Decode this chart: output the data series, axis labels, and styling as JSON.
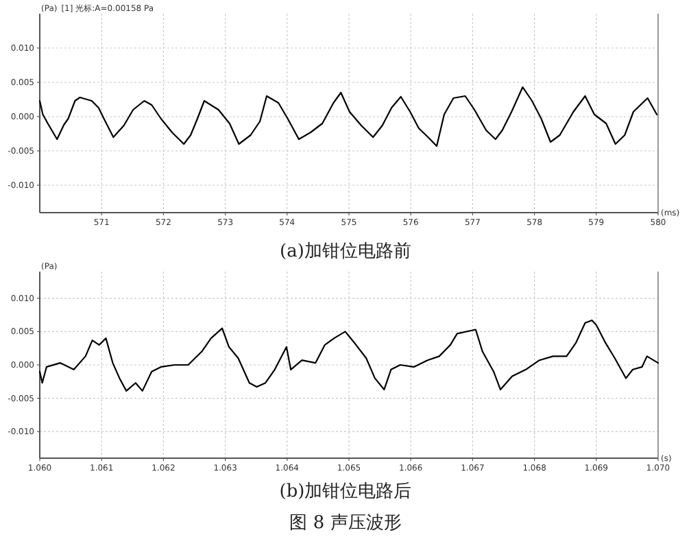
{
  "chart_data": [
    {
      "type": "line",
      "title": "(a)加钳位电路前",
      "xlabel": "(ms)",
      "ylabel": "(Pa)",
      "annotations": [
        "[1] 光标:A=0.00158 Pa"
      ],
      "grid": true,
      "xlim": [
        570,
        580
      ],
      "xticks": [
        571,
        572,
        573,
        574,
        575,
        576,
        577,
        578,
        579,
        580
      ],
      "ylim": [
        -0.014,
        0.015
      ],
      "yticks": [
        {
          "value": 0.01,
          "label": "0.010"
        },
        {
          "value": 0.005,
          "label": "0.005"
        },
        {
          "value": 0,
          "label": "0.000"
        },
        {
          "value": -0.005,
          "label": "-0.005"
        },
        {
          "value": -0.01,
          "label": "-0.010"
        }
      ],
      "series": [
        {
          "color": "#000000",
          "x": [
            570.0,
            570.05,
            570.13,
            570.28,
            570.39,
            570.46,
            570.57,
            570.65,
            570.84,
            570.95,
            571.06,
            571.19,
            571.36,
            571.51,
            571.69,
            571.81,
            571.96,
            572.14,
            572.33,
            572.44,
            572.55,
            572.66,
            572.89,
            573.07,
            573.22,
            573.41,
            573.56,
            573.67,
            573.86,
            574.01,
            574.19,
            574.38,
            574.57,
            574.75,
            574.87,
            575.01,
            575.2,
            575.39,
            575.54,
            575.69,
            575.84,
            575.99,
            576.13,
            576.28,
            576.42,
            576.54,
            576.69,
            576.88,
            577.03,
            577.22,
            577.37,
            577.48,
            577.63,
            577.81,
            577.96,
            578.11,
            578.26,
            578.41,
            578.63,
            578.82,
            578.97,
            579.16,
            579.31,
            579.46,
            579.6,
            579.83,
            579.98
          ],
          "values": [
            0.0023,
            0.0003,
            -0.001,
            -0.0033,
            -0.0012,
            -0.0003,
            0.0023,
            0.0028,
            0.0023,
            0.0013,
            -0.0007,
            -0.003,
            -0.0013,
            0.001,
            0.0023,
            0.0017,
            -0.0003,
            -0.0023,
            -0.004,
            -0.0027,
            -0.0003,
            0.0023,
            0.001,
            -0.001,
            -0.004,
            -0.0027,
            -0.0007,
            0.003,
            0.002,
            -0.0003,
            -0.0033,
            -0.0023,
            -0.001,
            0.002,
            0.0035,
            0.0007,
            -0.0013,
            -0.003,
            -0.0013,
            0.0013,
            0.0029,
            0.0007,
            -0.0017,
            -0.003,
            -0.0043,
            0.0003,
            0.0027,
            0.003,
            0.001,
            -0.002,
            -0.0033,
            -0.002,
            0.0007,
            0.0043,
            0.0023,
            -0.0003,
            -0.0037,
            -0.0027,
            0.0007,
            0.003,
            0.0003,
            -0.001,
            -0.004,
            -0.0027,
            0.0007,
            0.0027,
            0.0003
          ]
        }
      ]
    },
    {
      "type": "line",
      "title": "(b)加钳位电路后",
      "xlabel": "(s)",
      "ylabel": "(Pa)",
      "annotations": [
        "图 8  声压波形"
      ],
      "grid": true,
      "xlim": [
        1.06,
        1.07
      ],
      "xticks": [
        {
          "value": 1.06,
          "label": "1.060"
        },
        {
          "value": 1.061,
          "label": "1.061"
        },
        {
          "value": 1.062,
          "label": "1.062"
        },
        {
          "value": 1.063,
          "label": "1.063"
        },
        {
          "value": 1.064,
          "label": "1.064"
        },
        {
          "value": 1.065,
          "label": "1.065"
        },
        {
          "value": 1.066,
          "label": "1.066"
        },
        {
          "value": 1.067,
          "label": "1.067"
        },
        {
          "value": 1.068,
          "label": "1.068"
        },
        {
          "value": 1.069,
          "label": "1.069"
        },
        {
          "value": 1.07,
          "label": "1.070"
        }
      ],
      "ylim": [
        -0.014,
        0.014
      ],
      "yticks": [
        {
          "value": 0.01,
          "label": "0.010"
        },
        {
          "value": 0.005,
          "label": "0.005"
        },
        {
          "value": 0,
          "label": "0.000"
        },
        {
          "value": -0.005,
          "label": "-0.005"
        },
        {
          "value": -0.01,
          "label": "-0.010"
        }
      ],
      "series": [
        {
          "color": "#000000",
          "x": [
            1.06,
            1.06004,
            1.06011,
            1.06033,
            1.06055,
            1.06074,
            1.06085,
            1.06096,
            1.06107,
            1.06118,
            1.06129,
            1.0614,
            1.06155,
            1.06166,
            1.06181,
            1.06196,
            1.06218,
            1.0624,
            1.06262,
            1.06277,
            1.06295,
            1.06306,
            1.06321,
            1.06339,
            1.06351,
            1.06365,
            1.0638,
            1.06399,
            1.06406,
            1.06424,
            1.06446,
            1.06461,
            1.06476,
            1.06494,
            1.06509,
            1.06528,
            1.06542,
            1.06557,
            1.06568,
            1.06583,
            1.06605,
            1.06627,
            1.06646,
            1.06664,
            1.06675,
            1.06705,
            1.06716,
            1.06734,
            1.06745,
            1.06764,
            1.06786,
            1.06808,
            1.0683,
            1.06852,
            1.06867,
            1.06882,
            1.06893,
            1.069,
            1.06915,
            1.0693,
            1.06948,
            1.06959,
            1.06974,
            1.06982,
            1.07
          ],
          "values": [
            -0.001,
            -0.0027,
            -0.0003,
            0.0003,
            -0.0007,
            0.0013,
            0.0037,
            0.003,
            0.004,
            0.0003,
            -0.002,
            -0.0039,
            -0.0027,
            -0.0039,
            -0.001,
            -0.0003,
            0.0,
            0.0,
            0.002,
            0.004,
            0.0055,
            0.0027,
            0.001,
            -0.0027,
            -0.0033,
            -0.0027,
            -0.0007,
            0.0027,
            -0.0007,
            0.0007,
            0.0003,
            0.003,
            0.004,
            0.005,
            0.0033,
            0.001,
            -0.002,
            -0.0037,
            -0.0007,
            0.0,
            -0.0003,
            0.0007,
            0.0013,
            0.003,
            0.0047,
            0.0053,
            0.002,
            -0.001,
            -0.0037,
            -0.0017,
            -0.0007,
            0.0007,
            0.0013,
            0.0013,
            0.0033,
            0.0063,
            0.0067,
            0.006,
            0.0033,
            0.001,
            -0.002,
            -0.0007,
            -0.0003,
            0.0013,
            0.0003
          ]
        }
      ]
    }
  ]
}
